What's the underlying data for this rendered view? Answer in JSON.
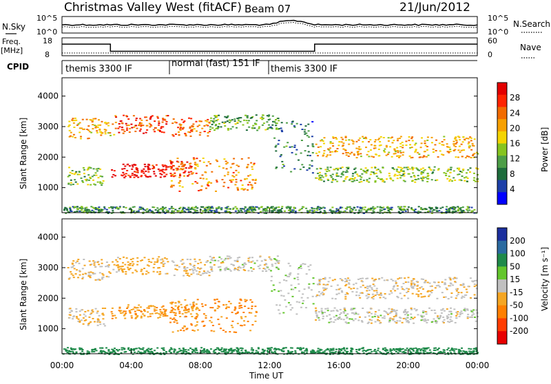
{
  "header": {
    "station": "Christmas Valley West (fitACF)",
    "beam": "Beam 07",
    "date": "21/Jun/2012"
  },
  "panels": {
    "noise": {
      "left_label": "N.Sky",
      "left_ticks": [
        "10^5",
        "10^0"
      ],
      "right_ticks": [
        "10^5",
        "10^0"
      ],
      "right_label": "N.Search"
    },
    "freq": {
      "left_label_1": "Freq.",
      "left_label_2": "[MHz]",
      "left_ticks": [
        "18",
        "8"
      ],
      "right_ticks": [
        "60",
        "0"
      ],
      "right_label": "Nave"
    },
    "cpid": {
      "label": "CPID",
      "modes": [
        "themis 3300 IF",
        "normal (fast) 151 IF",
        "themis 3300 IF"
      ]
    }
  },
  "axes": {
    "ylabel": "Slant Range [km]",
    "xlabel": "Time UT",
    "x_ticks": [
      "00:00",
      "04:00",
      "08:00",
      "12:00",
      "16:00",
      "20:00",
      "00:00"
    ],
    "y_ticks": [
      "1000",
      "2000",
      "3000",
      "4000"
    ]
  },
  "colorbars": {
    "power": {
      "label": "Power [dB]",
      "ticks": [
        "4",
        "8",
        "12",
        "16",
        "20",
        "24",
        "28"
      ],
      "colors": [
        "#0000ff",
        "#1d3fa8",
        "#1e6c3c",
        "#4d9e47",
        "#86c41f",
        "#f4d400",
        "#f7a000",
        "#f26b00",
        "#ff2400",
        "#e30000"
      ]
    },
    "velocity": {
      "label": "Velocity [m s⁻¹]",
      "ticks": [
        "200",
        "100",
        "50",
        "15",
        "-15",
        "-50",
        "-100",
        "-200"
      ],
      "colors": [
        "#1b2f9e",
        "#2a6aa0",
        "#1f8a4a",
        "#63c62c",
        "#c0c0c0",
        "#f5a623",
        "#ff7f00",
        "#ff3c00",
        "#e80000"
      ]
    }
  },
  "chart_data": {
    "type": "heatmap",
    "title": "Christmas Valley West (fitACF) Beam 07 21/Jun/2012",
    "xlabel": "Time UT",
    "ylabel": "Slant Range [km]",
    "xlim": [
      0,
      24
    ],
    "ylim": [
      180,
      4600
    ],
    "cpid_segments": [
      {
        "start": 0,
        "end": 6.2,
        "label": "themis 3300 IF"
      },
      {
        "start": 6.2,
        "end": 12.0,
        "label": "normal (fast) 151 IF"
      },
      {
        "start": 12.0,
        "end": 24,
        "label": "themis 3300 IF"
      }
    ],
    "freq_segments_mhz": [
      {
        "start": 0,
        "end": 2.8,
        "value": 14.5
      },
      {
        "start": 2.8,
        "end": 14.6,
        "value": 10.5
      },
      {
        "start": 14.6,
        "end": 24,
        "value": 14.5
      }
    ],
    "echo_regions": [
      {
        "t0": 0.3,
        "t1": 3.0,
        "r0": 2600,
        "r1": 3300,
        "power_db": 20,
        "velocity": -15
      },
      {
        "t0": 3.0,
        "t1": 6.1,
        "r0": 2800,
        "r1": 3400,
        "power_db": 26,
        "velocity": -30
      },
      {
        "t0": 0.3,
        "t1": 2.5,
        "r0": 1100,
        "r1": 1700,
        "power_db": 14,
        "velocity": -15
      },
      {
        "t0": 2.8,
        "t1": 6.1,
        "r0": 1350,
        "r1": 1800,
        "power_db": 30,
        "velocity": -40
      },
      {
        "t0": 6.2,
        "t1": 7.8,
        "r0": 1400,
        "r1": 1900,
        "power_db": 28,
        "velocity": -30
      },
      {
        "t0": 6.2,
        "t1": 11.2,
        "r0": 900,
        "r1": 2000,
        "power_db": 22,
        "velocity": -60
      },
      {
        "t0": 6.3,
        "t1": 8.5,
        "r0": 2700,
        "r1": 3300,
        "power_db": 24,
        "velocity": -15
      },
      {
        "t0": 8.5,
        "t1": 12.5,
        "r0": 2900,
        "r1": 3400,
        "power_db": 12,
        "velocity": 0
      },
      {
        "t0": 12.0,
        "t1": 14.5,
        "r0": 1500,
        "r1": 3200,
        "power_db": 8,
        "velocity": 10
      },
      {
        "t0": 14.6,
        "t1": 24,
        "r0": 2000,
        "r1": 2700,
        "power_db": 20,
        "velocity": -10
      },
      {
        "t0": 14.6,
        "t1": 24,
        "r0": 1200,
        "r1": 1700,
        "power_db": 14,
        "velocity": 0
      },
      {
        "t0": 0,
        "t1": 24,
        "r0": 180,
        "r1": 400,
        "power_db": 10,
        "velocity": 50
      }
    ]
  }
}
